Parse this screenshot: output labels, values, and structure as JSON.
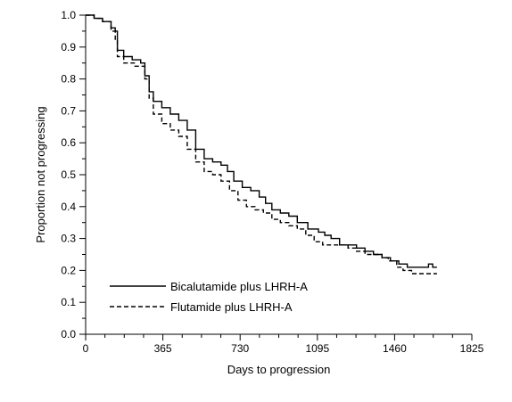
{
  "chart_data": {
    "type": "line",
    "title": "",
    "xlabel": "Days to progression",
    "ylabel": "Proportion not progressing",
    "xlim": [
      0,
      1825
    ],
    "ylim": [
      0.0,
      1.0
    ],
    "x_ticks": [
      0,
      365,
      730,
      1095,
      1460,
      1825
    ],
    "x_tick_labels": [
      "0",
      "365",
      "730",
      "1095",
      "1460",
      "1825"
    ],
    "y_ticks": [
      0.0,
      0.1,
      0.2,
      0.3,
      0.4,
      0.5,
      0.6,
      0.7,
      0.8,
      0.9,
      1.0
    ],
    "y_tick_labels": [
      "0.0",
      "0.1",
      "0.2",
      "0.3",
      "0.4",
      "0.5",
      "0.6",
      "0.7",
      "0.8",
      "0.9",
      "1.0"
    ],
    "grid": false,
    "legend_position": "bottom-left",
    "step": true,
    "series": [
      {
        "name": "Bicalutamide plus LHRH-A",
        "style": "solid",
        "color": "#000000",
        "points": [
          [
            0,
            1.0
          ],
          [
            40,
            0.99
          ],
          [
            80,
            0.98
          ],
          [
            120,
            0.96
          ],
          [
            140,
            0.95
          ],
          [
            150,
            0.89
          ],
          [
            180,
            0.87
          ],
          [
            220,
            0.86
          ],
          [
            260,
            0.85
          ],
          [
            280,
            0.81
          ],
          [
            300,
            0.76
          ],
          [
            320,
            0.73
          ],
          [
            360,
            0.71
          ],
          [
            400,
            0.69
          ],
          [
            440,
            0.67
          ],
          [
            480,
            0.64
          ],
          [
            520,
            0.58
          ],
          [
            560,
            0.55
          ],
          [
            600,
            0.54
          ],
          [
            640,
            0.53
          ],
          [
            670,
            0.51
          ],
          [
            700,
            0.48
          ],
          [
            740,
            0.46
          ],
          [
            780,
            0.45
          ],
          [
            820,
            0.43
          ],
          [
            850,
            0.41
          ],
          [
            880,
            0.39
          ],
          [
            920,
            0.38
          ],
          [
            960,
            0.37
          ],
          [
            1000,
            0.35
          ],
          [
            1050,
            0.33
          ],
          [
            1100,
            0.32
          ],
          [
            1130,
            0.31
          ],
          [
            1160,
            0.3
          ],
          [
            1200,
            0.28
          ],
          [
            1240,
            0.28
          ],
          [
            1280,
            0.27
          ],
          [
            1320,
            0.26
          ],
          [
            1360,
            0.25
          ],
          [
            1400,
            0.24
          ],
          [
            1440,
            0.23
          ],
          [
            1480,
            0.22
          ],
          [
            1520,
            0.21
          ],
          [
            1560,
            0.21
          ],
          [
            1600,
            0.21
          ],
          [
            1620,
            0.22
          ],
          [
            1640,
            0.21
          ],
          [
            1660,
            0.21
          ]
        ]
      },
      {
        "name": "Flutamide plus LHRH-A",
        "style": "dashed",
        "color": "#000000",
        "points": [
          [
            0,
            1.0
          ],
          [
            40,
            0.99
          ],
          [
            80,
            0.98
          ],
          [
            120,
            0.95
          ],
          [
            140,
            0.92
          ],
          [
            150,
            0.87
          ],
          [
            180,
            0.85
          ],
          [
            230,
            0.84
          ],
          [
            280,
            0.8
          ],
          [
            300,
            0.74
          ],
          [
            320,
            0.69
          ],
          [
            360,
            0.66
          ],
          [
            400,
            0.64
          ],
          [
            440,
            0.62
          ],
          [
            480,
            0.58
          ],
          [
            520,
            0.54
          ],
          [
            560,
            0.51
          ],
          [
            600,
            0.5
          ],
          [
            640,
            0.48
          ],
          [
            680,
            0.45
          ],
          [
            720,
            0.42
          ],
          [
            760,
            0.4
          ],
          [
            800,
            0.39
          ],
          [
            840,
            0.38
          ],
          [
            880,
            0.36
          ],
          [
            920,
            0.35
          ],
          [
            960,
            0.34
          ],
          [
            1000,
            0.33
          ],
          [
            1040,
            0.31
          ],
          [
            1080,
            0.29
          ],
          [
            1120,
            0.28
          ],
          [
            1160,
            0.28
          ],
          [
            1200,
            0.28
          ],
          [
            1240,
            0.27
          ],
          [
            1280,
            0.26
          ],
          [
            1320,
            0.25
          ],
          [
            1360,
            0.25
          ],
          [
            1400,
            0.24
          ],
          [
            1430,
            0.23
          ],
          [
            1470,
            0.21
          ],
          [
            1500,
            0.2
          ],
          [
            1540,
            0.19
          ],
          [
            1580,
            0.19
          ],
          [
            1620,
            0.19
          ],
          [
            1660,
            0.19
          ]
        ]
      }
    ]
  }
}
